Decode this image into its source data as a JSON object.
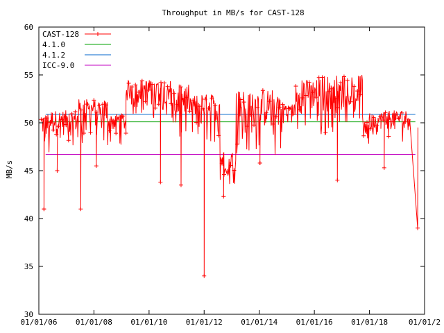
{
  "chart_data": {
    "type": "line",
    "title": "Throughput in MB/s for CAST-128",
    "xlabel": "",
    "ylabel": "MB/s",
    "ylim": [
      30,
      60
    ],
    "yticks": [
      30,
      35,
      40,
      45,
      50,
      55,
      60
    ],
    "xlim": [
      "2006-01-01",
      "2020-01-01"
    ],
    "xticks": [
      {
        "value": "2006-01-01",
        "label": "01/01/06"
      },
      {
        "value": "2008-01-01",
        "label": "01/01/08"
      },
      {
        "value": "2010-01-01",
        "label": "01/01/10"
      },
      {
        "value": "2012-01-01",
        "label": "01/01/12"
      },
      {
        "value": "2014-01-01",
        "label": "01/01/14"
      },
      {
        "value": "2016-01-01",
        "label": "01/01/16"
      },
      {
        "value": "2018-01-01",
        "label": "01/01/18"
      },
      {
        "value": "2020-01-01",
        "label": "01/01/2"
      }
    ],
    "legend_position": "top-left",
    "grid": false,
    "series": [
      {
        "name": "CAST-128",
        "color": "#ff0000",
        "marker": "plus",
        "segments": [
          {
            "x": [
              "2006-02-01",
              "2006-06-01"
            ],
            "y_low": 46.5,
            "y_high": 51.0
          },
          {
            "x": [
              "2006-06-01",
              "2007-06-01"
            ],
            "y_low": 47.0,
            "y_high": 51.3
          },
          {
            "x": [
              "2007-06-01",
              "2008-07-01"
            ],
            "y_low": 47.5,
            "y_high": 52.5
          },
          {
            "x": [
              "2008-07-01",
              "2009-03-01"
            ],
            "y_low": 47.5,
            "y_high": 51.0
          },
          {
            "x": [
              "2009-03-01",
              "2010-11-01"
            ],
            "y_low": 50.5,
            "y_high": 54.5
          },
          {
            "x": [
              "2010-11-01",
              "2011-07-01"
            ],
            "y_low": 48.0,
            "y_high": 54.0
          },
          {
            "x": [
              "2011-07-01",
              "2012-08-01"
            ],
            "y_low": 48.0,
            "y_high": 53.0
          },
          {
            "x": [
              "2012-08-01",
              "2013-03-01"
            ],
            "y_low": 43.5,
            "y_high": 47.0
          },
          {
            "x": [
              "2013-03-01",
              "2014-11-01"
            ],
            "y_low": 46.5,
            "y_high": 53.5
          },
          {
            "x": [
              "2014-11-01",
              "2015-05-01"
            ],
            "y_low": 49.5,
            "y_high": 52.0
          },
          {
            "x": [
              "2015-05-01",
              "2016-02-01"
            ],
            "y_low": 49.0,
            "y_high": 54.5
          },
          {
            "x": [
              "2016-02-01",
              "2016-12-01"
            ],
            "y_low": 48.5,
            "y_high": 55.0
          },
          {
            "x": [
              "2016-12-01",
              "2017-10-01"
            ],
            "y_low": 50.0,
            "y_high": 55.0
          },
          {
            "x": [
              "2017-10-01",
              "2018-06-01"
            ],
            "y_low": 47.5,
            "y_high": 51.0
          },
          {
            "x": [
              "2018-06-01",
              "2019-07-01"
            ],
            "y_low": 48.0,
            "y_high": 51.3
          }
        ],
        "spikes": [
          {
            "x": "2006-03-10",
            "y": 41.0
          },
          {
            "x": "2006-09-01",
            "y": 45.0
          },
          {
            "x": "2007-07-10",
            "y": 41.0
          },
          {
            "x": "2008-02-01",
            "y": 45.5
          },
          {
            "x": "2010-06-01",
            "y": 43.8
          },
          {
            "x": "2011-03-01",
            "y": 43.5
          },
          {
            "x": "2012-01-01",
            "y": 34.0
          },
          {
            "x": "2012-09-15",
            "y": 42.3
          },
          {
            "x": "2014-01-10",
            "y": 45.8
          },
          {
            "x": "2016-11-01",
            "y": 44.0
          },
          {
            "x": "2018-07-15",
            "y": 45.3
          },
          {
            "x": "2019-10-01",
            "y": 39.0
          }
        ]
      },
      {
        "name": "4.1.0",
        "color": "#00a000",
        "x": [
          "2006-04-01",
          "2019-09-01"
        ],
        "y": [
          50.1,
          50.1
        ]
      },
      {
        "name": "4.1.2",
        "color": "#0066cc",
        "x": [
          "2006-04-01",
          "2019-09-01"
        ],
        "y": [
          50.9,
          50.9
        ]
      },
      {
        "name": "ICC-9.0",
        "color": "#c000c0",
        "x": [
          "2006-04-01",
          "2019-09-01"
        ],
        "y": [
          46.7,
          46.7
        ]
      }
    ]
  }
}
